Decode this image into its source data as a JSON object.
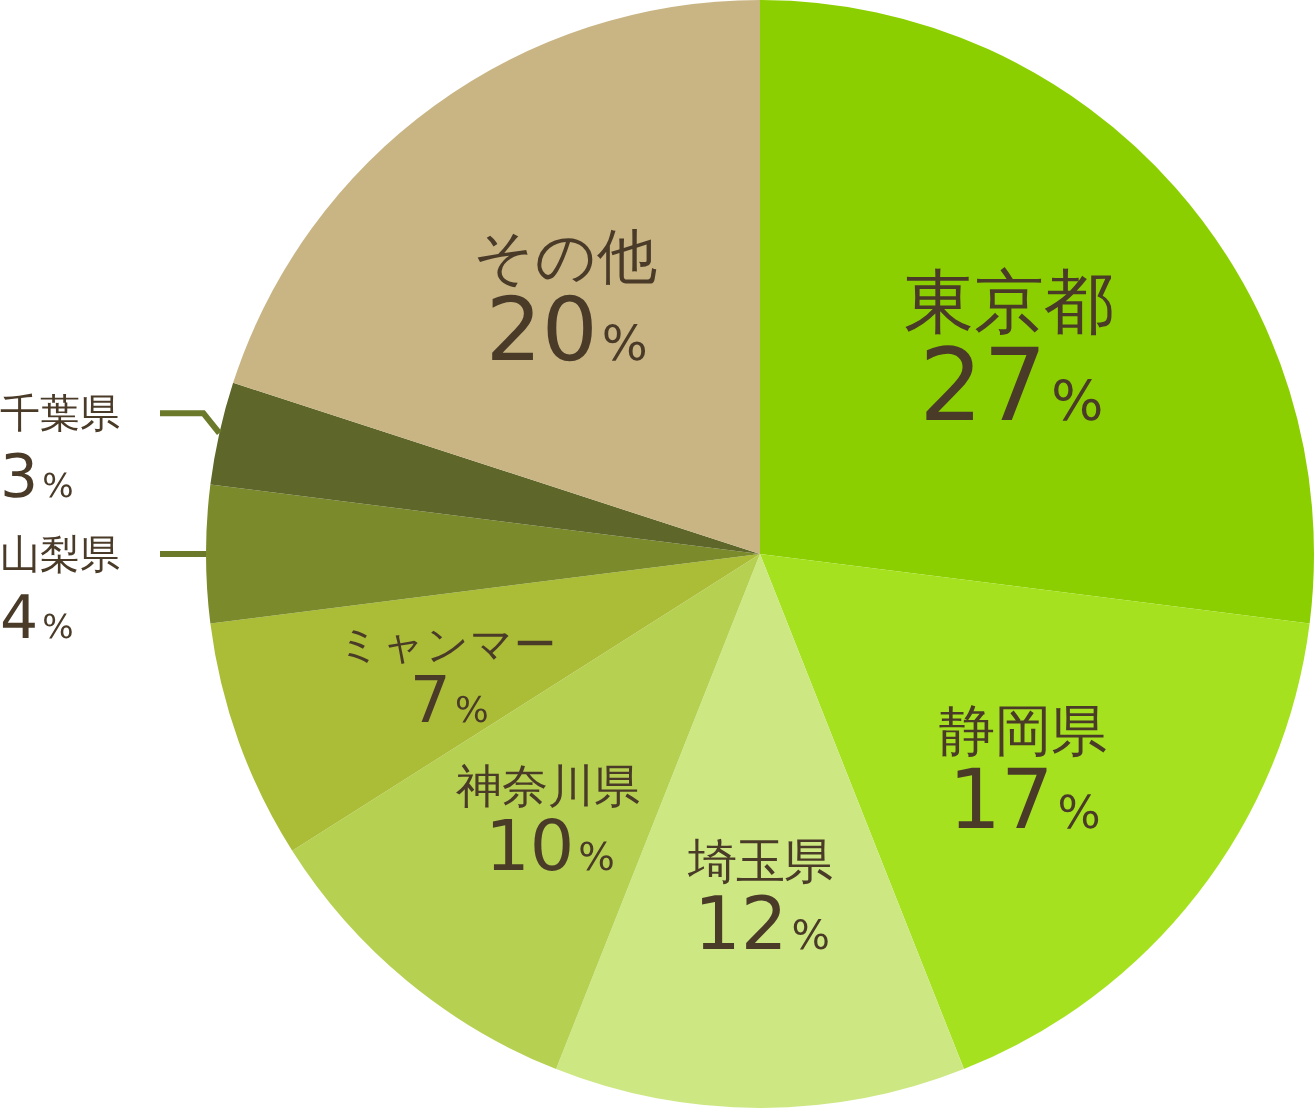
{
  "chart_data": {
    "type": "pie",
    "categories": [
      "東京都",
      "静岡県",
      "埼玉県",
      "神奈川県",
      "ミャンマー",
      "山梨県",
      "千葉県",
      "その他"
    ],
    "values": [
      27,
      17,
      12,
      10,
      7,
      4,
      3,
      20
    ],
    "colors": [
      "#8ccf00",
      "#a6e120",
      "#cde883",
      "#b6d152",
      "#abbd37",
      "#7b8a2b",
      "#5e6629",
      "#c9b584"
    ],
    "value_labels": [
      "27%",
      "17%",
      "12%",
      "10%",
      "7%",
      "4%",
      "3%",
      "20%"
    ],
    "legend": false
  }
}
